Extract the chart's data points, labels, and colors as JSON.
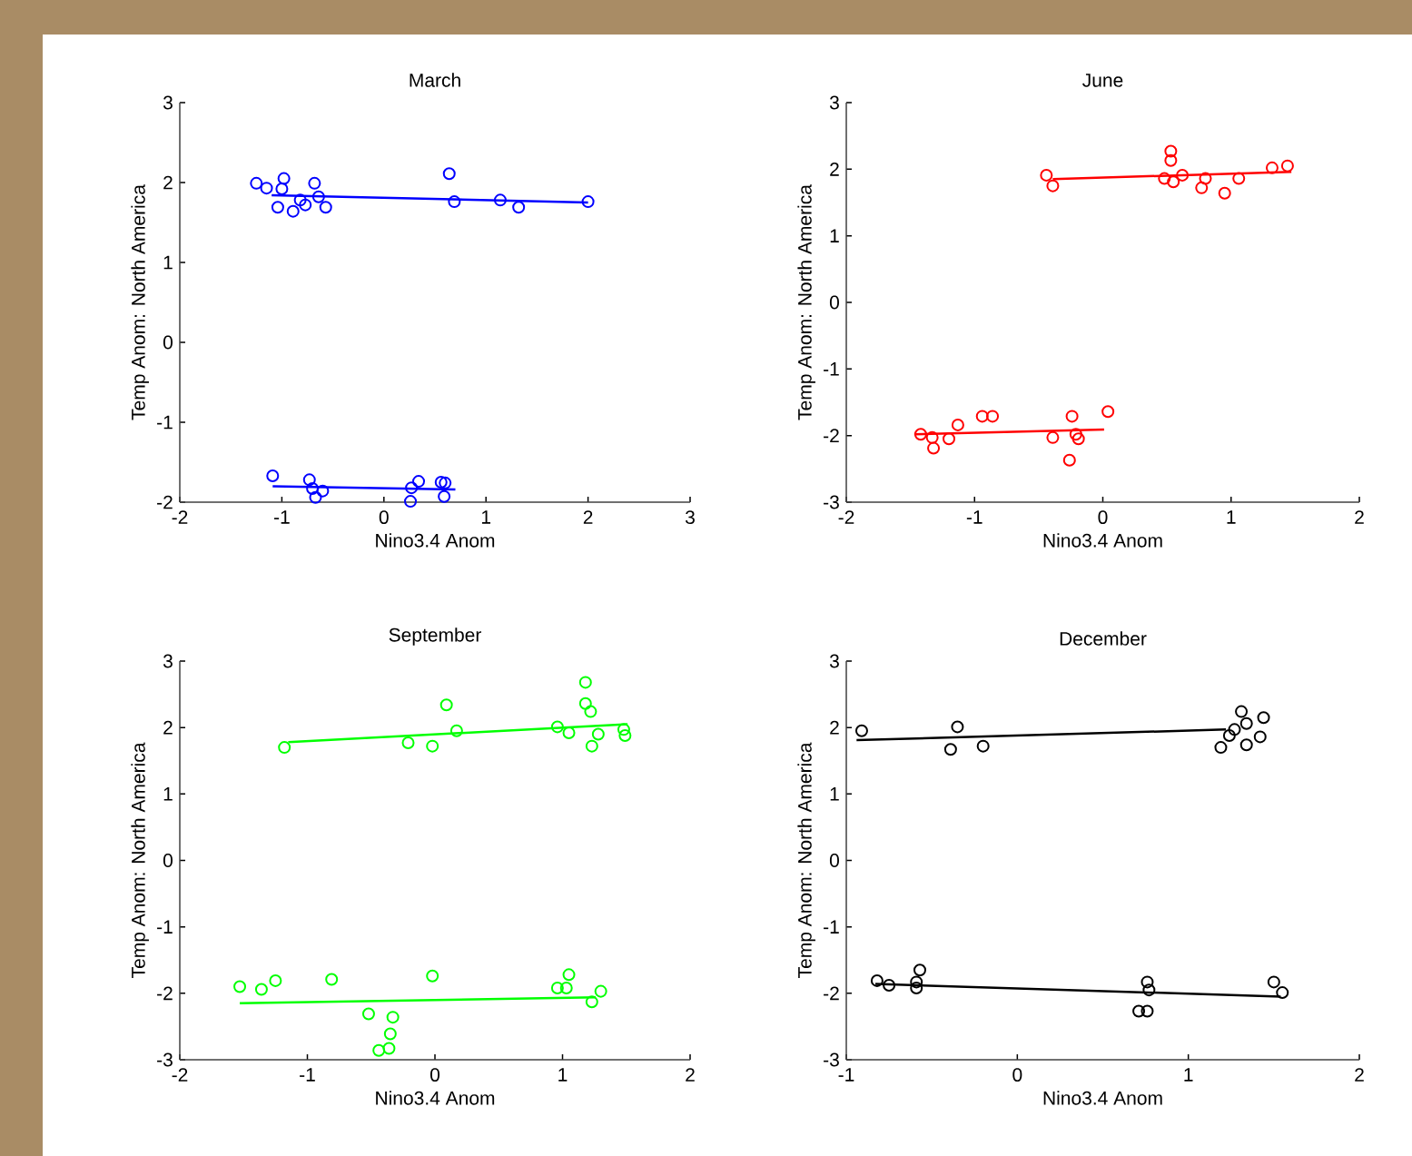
{
  "chart_data": [
    {
      "type": "scatter",
      "title": "March",
      "xlabel": "Nino3.4 Anom",
      "ylabel": "Temp Anom: North America",
      "xlim": [
        -2,
        3
      ],
      "ylim": [
        -2,
        3
      ],
      "xticks": [
        -2,
        -1,
        0,
        1,
        2,
        3
      ],
      "yticks": [
        -2,
        -1,
        0,
        1,
        2,
        3
      ],
      "series": [
        {
          "type": "scatter",
          "marker": "circle",
          "color": "#0000ff",
          "x": [
            -1.25,
            -1.15,
            -0.98,
            -1.0,
            -1.04,
            -0.89,
            -0.82,
            -0.68,
            -0.77,
            -0.64,
            -0.57,
            0.64,
            0.69,
            1.14,
            1.32,
            2.0,
            -1.09,
            -0.73,
            -0.7,
            -0.67,
            -0.6,
            0.27,
            0.26,
            0.34,
            0.56,
            0.6,
            0.59
          ],
          "values": [
            1.99,
            1.93,
            2.05,
            1.92,
            1.69,
            1.64,
            1.78,
            1.99,
            1.72,
            1.82,
            1.69,
            2.11,
            1.76,
            1.78,
            1.69,
            1.76,
            -1.67,
            -1.72,
            -1.83,
            -1.94,
            -1.86,
            -1.82,
            -1.99,
            -1.74,
            -1.75,
            -1.76,
            -1.93
          ]
        },
        {
          "type": "line",
          "marker": "none",
          "color": "#0000ff",
          "x": [
            -1.1,
            2.0
          ],
          "values": [
            1.84,
            1.75
          ]
        },
        {
          "type": "line",
          "marker": "none",
          "color": "#0000ff",
          "x": [
            -1.09,
            0.7
          ],
          "values": [
            -1.8,
            -1.84
          ]
        }
      ]
    },
    {
      "type": "scatter",
      "title": "June",
      "xlabel": "Nino3.4 Anom",
      "ylabel": "Temp Anom: North America",
      "xlim": [
        -2,
        2
      ],
      "ylim": [
        -3,
        3
      ],
      "xticks": [
        -2,
        -1,
        0,
        1,
        2
      ],
      "yticks": [
        -3,
        -2,
        -1,
        0,
        1,
        2,
        3
      ],
      "series": [
        {
          "type": "scatter",
          "marker": "circle",
          "color": "#ff0000",
          "x": [
            -0.44,
            -0.39,
            0.53,
            0.53,
            0.48,
            0.55,
            0.62,
            0.77,
            0.8,
            0.95,
            1.06,
            1.32,
            1.44,
            -1.42,
            -1.33,
            -1.32,
            -1.2,
            -1.13,
            -0.94,
            -0.86,
            -0.39,
            -0.24,
            -0.21,
            -0.26,
            0.04,
            -0.19
          ],
          "values": [
            1.91,
            1.75,
            2.27,
            2.13,
            1.86,
            1.81,
            1.91,
            1.72,
            1.86,
            1.64,
            1.86,
            2.02,
            2.05,
            -1.98,
            -2.03,
            -2.19,
            -2.05,
            -1.84,
            -1.71,
            -1.71,
            -2.03,
            -1.71,
            -1.98,
            -2.37,
            -1.64,
            -2.05
          ]
        },
        {
          "type": "line",
          "marker": "none",
          "color": "#ff0000",
          "x": [
            -0.39,
            1.47
          ],
          "values": [
            1.85,
            1.96
          ]
        },
        {
          "type": "line",
          "marker": "none",
          "color": "#ff0000",
          "x": [
            -1.47,
            0.01
          ],
          "values": [
            -1.98,
            -1.91
          ]
        }
      ]
    },
    {
      "type": "scatter",
      "title": "September",
      "xlabel": "Nino3.4 Anom",
      "ylabel": "Temp Anom: North America",
      "xlim": [
        -2,
        2
      ],
      "ylim": [
        -3,
        3
      ],
      "xticks": [
        -2,
        -1,
        0,
        1,
        2
      ],
      "yticks": [
        -3,
        -2,
        -1,
        0,
        1,
        2,
        3
      ],
      "series": [
        {
          "type": "scatter",
          "marker": "circle",
          "color": "#00ff00",
          "x": [
            -1.18,
            -0.21,
            -0.02,
            0.09,
            0.17,
            0.96,
            1.05,
            1.18,
            1.18,
            1.22,
            1.28,
            1.23,
            1.49,
            1.48,
            -1.53,
            -1.36,
            -1.25,
            -0.81,
            -0.02,
            -0.52,
            -0.33,
            -0.35,
            -0.44,
            -0.36,
            1.05,
            0.96,
            1.03,
            1.3,
            1.23
          ],
          "values": [
            1.7,
            1.77,
            1.72,
            2.34,
            1.95,
            2.01,
            1.92,
            2.68,
            2.36,
            2.24,
            1.9,
            1.72,
            1.88,
            1.97,
            -1.9,
            -1.94,
            -1.81,
            -1.79,
            -1.74,
            -2.31,
            -2.36,
            -2.61,
            -2.86,
            -2.83,
            -1.72,
            -1.92,
            -1.92,
            -1.97,
            -2.13
          ]
        },
        {
          "type": "line",
          "marker": "none",
          "color": "#00ff00",
          "x": [
            -1.15,
            1.51
          ],
          "values": [
            1.78,
            2.05
          ]
        },
        {
          "type": "line",
          "marker": "none",
          "color": "#00ff00",
          "x": [
            -1.53,
            1.26
          ],
          "values": [
            -2.15,
            -2.06
          ]
        }
      ]
    },
    {
      "type": "scatter",
      "title": "December",
      "xlabel": "Nino3.4 Anom",
      "ylabel": "Temp Anom: North America",
      "xlim": [
        -1,
        2
      ],
      "ylim": [
        -3,
        3
      ],
      "xticks": [
        -1,
        0,
        1,
        2
      ],
      "yticks": [
        -3,
        -2,
        -1,
        0,
        1,
        2,
        3
      ],
      "series": [
        {
          "type": "scatter",
          "marker": "circle",
          "color": "#000000",
          "x": [
            -0.91,
            -0.35,
            -0.39,
            -0.2,
            1.19,
            1.31,
            1.44,
            1.27,
            1.34,
            1.34,
            1.42,
            1.24,
            -0.82,
            -0.75,
            -0.57,
            -0.59,
            -0.59,
            0.76,
            0.77,
            0.71,
            0.76,
            1.5,
            1.55
          ],
          "values": [
            1.95,
            2.01,
            1.67,
            1.72,
            1.7,
            2.24,
            2.15,
            1.97,
            2.06,
            1.74,
            1.86,
            1.88,
            -1.81,
            -1.88,
            -1.65,
            -1.92,
            -1.83,
            -1.83,
            -1.95,
            -2.27,
            -2.27,
            -1.83,
            -1.99
          ]
        },
        {
          "type": "line",
          "marker": "none",
          "color": "#000000",
          "x": [
            -0.94,
            1.22
          ],
          "values": [
            1.81,
            1.97
          ]
        },
        {
          "type": "line",
          "marker": "none",
          "color": "#000000",
          "x": [
            -0.83,
            1.54
          ],
          "values": [
            -1.86,
            -2.05
          ]
        }
      ]
    }
  ]
}
